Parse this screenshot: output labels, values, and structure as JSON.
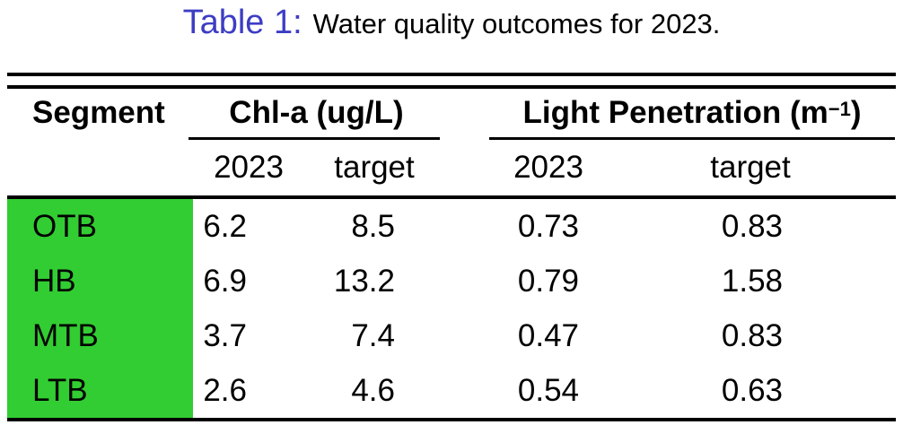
{
  "caption": {
    "label": "Table 1:",
    "text": "Water quality outcomes for 2023."
  },
  "colors": {
    "caption_label": "#3D3DC4",
    "segment_highlight": "#32CD32",
    "rule": "#000000"
  },
  "table": {
    "header": {
      "segment": "Segment",
      "group_chla": "Chl-a (ug/L)",
      "group_lp_base": "Light Penetration (m",
      "group_lp_sup": "−1",
      "group_lp_close": ")",
      "subheaders": [
        "2023",
        "target",
        "2023",
        "target"
      ]
    },
    "rows": [
      {
        "segment": "OTB",
        "values": [
          "6.2",
          "8.5",
          "0.73",
          "0.83"
        ]
      },
      {
        "segment": "HB",
        "values": [
          "6.9",
          "13.2",
          "0.79",
          "1.58"
        ]
      },
      {
        "segment": "MTB",
        "values": [
          "3.7",
          "7.4",
          "0.47",
          "0.83"
        ]
      },
      {
        "segment": "LTB",
        "values": [
          "2.6",
          "4.6",
          "0.54",
          "0.63"
        ]
      }
    ]
  },
  "chart_data": {
    "type": "table",
    "title": "Table 1: Water quality outcomes for 2023.",
    "columns": [
      "Segment",
      "Chl-a (ug/L) 2023",
      "Chl-a (ug/L) target",
      "Light Penetration (m^-1) 2023",
      "Light Penetration (m^-1) target"
    ],
    "rows": [
      [
        "OTB",
        6.2,
        8.5,
        0.73,
        0.83
      ],
      [
        "HB",
        6.9,
        13.2,
        0.79,
        1.58
      ],
      [
        "MTB",
        3.7,
        7.4,
        0.47,
        0.83
      ],
      [
        "LTB",
        2.6,
        4.6,
        0.54,
        0.63
      ]
    ]
  }
}
